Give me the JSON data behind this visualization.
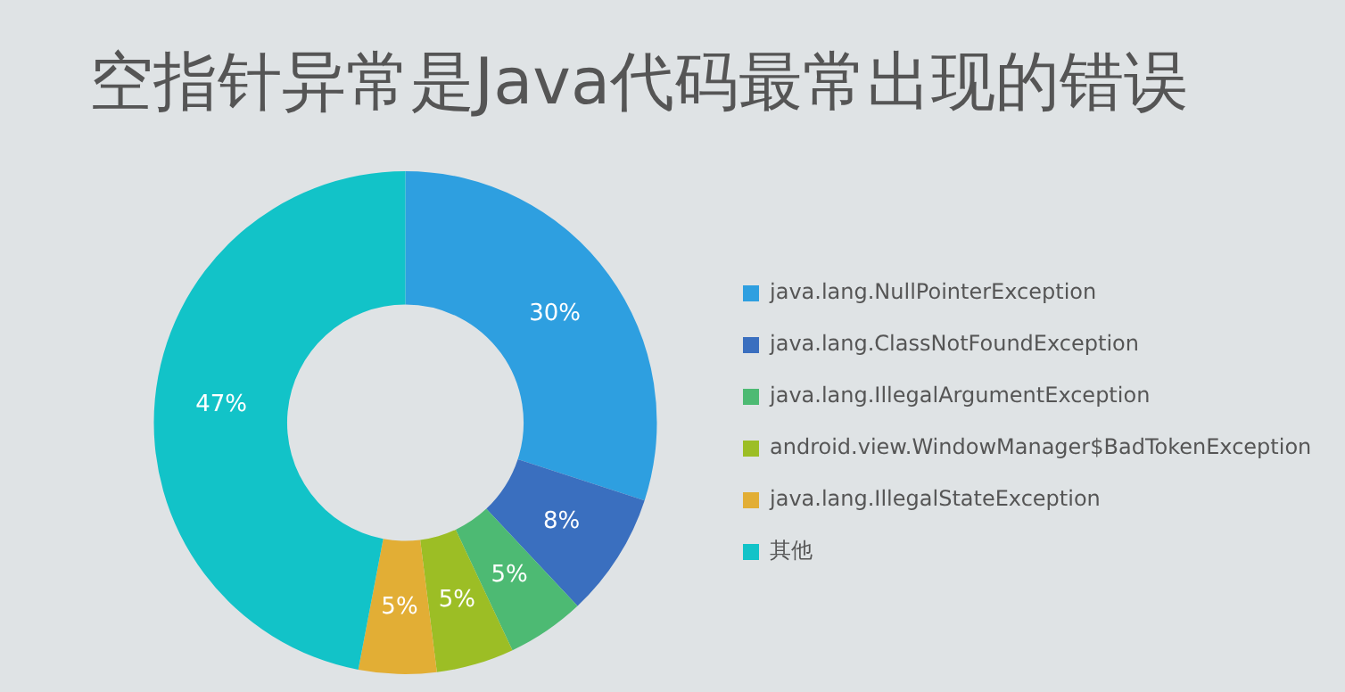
{
  "chart_data": {
    "type": "donut",
    "title": "空指针异常是Java代码最常出现的错误",
    "categories": [
      "java.lang.NullPointerException",
      "java.lang.ClassNotFoundException",
      "java.lang.IllegalArgumentException",
      "android.view.WindowManager$BadTokenException",
      "java.lang.IllegalStateException",
      "其他"
    ],
    "values": [
      30,
      8,
      5,
      5,
      5,
      47
    ],
    "value_labels": [
      "30%",
      "8%",
      "5%",
      "5%",
      "5%",
      "47%"
    ],
    "colors": [
      "#2e9fe0",
      "#3a6fbf",
      "#4dba73",
      "#9cbe25",
      "#e2ae35",
      "#12c3c8"
    ],
    "legend": "right"
  }
}
